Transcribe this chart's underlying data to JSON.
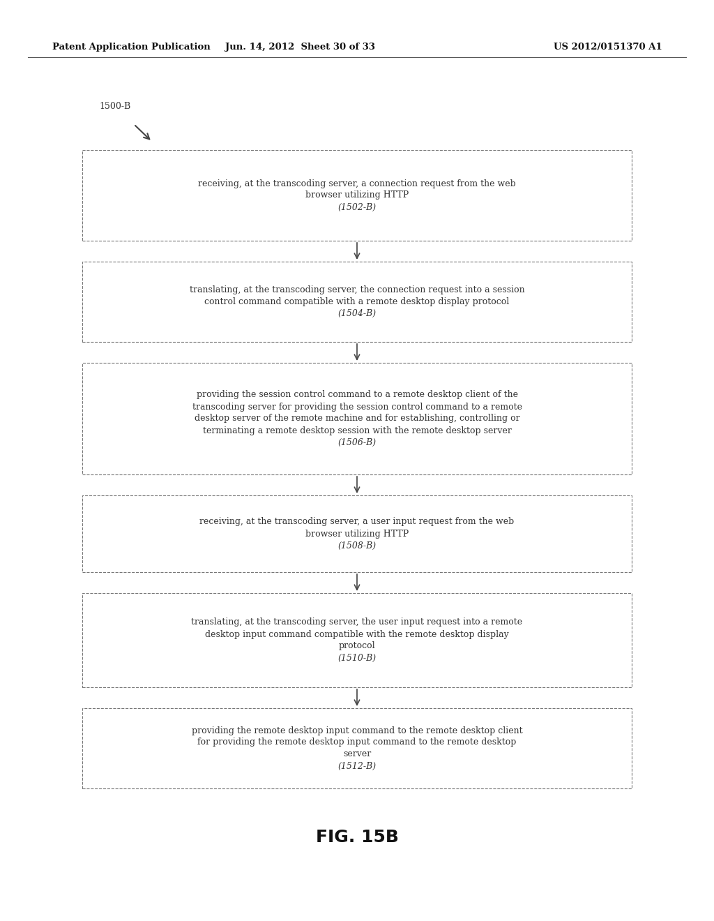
{
  "background_color": "#ffffff",
  "header_left": "Patent Application Publication",
  "header_center": "Jun. 14, 2012  Sheet 30 of 33",
  "header_right": "US 2012/0151370 A1",
  "label_1500B": "1500-B",
  "fig_label": "FIG. 15B",
  "boxes": [
    {
      "id": "1502-B",
      "lines": [
        "receiving, at the transcoding server, a connection request from the web",
        "browser utilizing HTTP",
        "(1502-B)"
      ]
    },
    {
      "id": "1504-B",
      "lines": [
        "translating, at the transcoding server, the connection request into a session",
        "control command compatible with a remote desktop display protocol",
        "(1504-B)"
      ]
    },
    {
      "id": "1506-B",
      "lines": [
        "providing the session control command to a remote desktop client of the",
        "transcoding server for providing the session control command to a remote",
        "desktop server of the remote machine and for establishing, controlling or",
        "terminating a remote desktop session with the remote desktop server",
        "(1506-B)"
      ]
    },
    {
      "id": "1508-B",
      "lines": [
        "receiving, at the transcoding server, a user input request from the web",
        "browser utilizing HTTP",
        "(1508-B)"
      ]
    },
    {
      "id": "1510-B",
      "lines": [
        "translating, at the transcoding server, the user input request into a remote",
        "desktop input command compatible with the remote desktop display",
        "protocol",
        "(1510-B)"
      ]
    },
    {
      "id": "1512-B",
      "lines": [
        "providing the remote desktop input command to the remote desktop client",
        "for providing the remote desktop input command to the remote desktop",
        "server",
        "(1512-B)"
      ]
    }
  ],
  "box_edge_color": "#777777",
  "text_color": "#333333",
  "arrow_color": "#444444",
  "font_size": 9.0,
  "header_font_size": 9.5,
  "fig_label_font_size": 18
}
